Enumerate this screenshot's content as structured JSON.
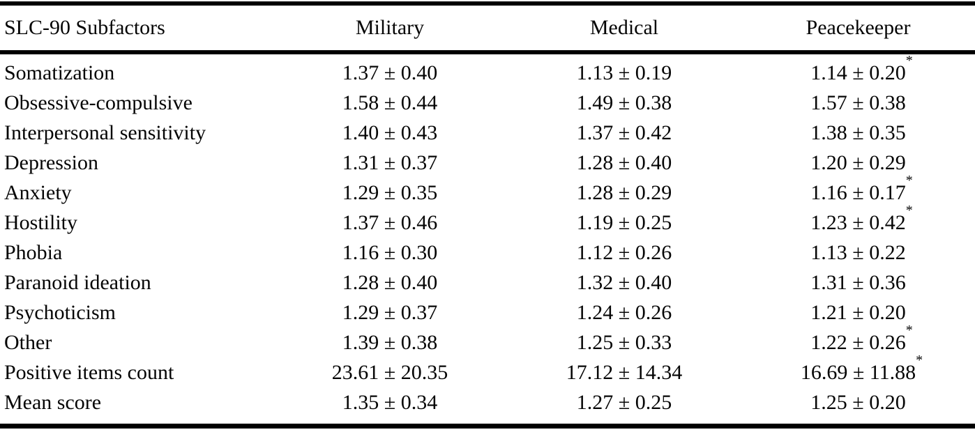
{
  "page": {
    "background_color": "#ffffff",
    "text_color": "#050505",
    "rule_color": "#000000"
  },
  "table": {
    "columns": [
      "SLC-90 Subfactors",
      "Military",
      "Medical",
      "Peacekeeper"
    ],
    "rows": [
      {
        "label": "Somatization",
        "military": "1.37 ± 0.40",
        "medical": "1.13 ± 0.19",
        "peacekeeper": "1.14 ± 0.20",
        "peacekeeper_sig": "*"
      },
      {
        "label": "Obsessive-compulsive",
        "military": "1.58 ± 0.44",
        "medical": "1.49 ± 0.38",
        "peacekeeper": "1.57 ± 0.38",
        "peacekeeper_sig": ""
      },
      {
        "label": "Interpersonal sensitivity",
        "military": "1.40 ± 0.43",
        "medical": "1.37 ± 0.42",
        "peacekeeper": "1.38 ± 0.35",
        "peacekeeper_sig": ""
      },
      {
        "label": "Depression",
        "military": "1.31 ± 0.37",
        "medical": "1.28 ± 0.40",
        "peacekeeper": "1.20 ± 0.29",
        "peacekeeper_sig": ""
      },
      {
        "label": "Anxiety",
        "military": "1.29 ± 0.35",
        "medical": "1.28 ± 0.29",
        "peacekeeper": "1.16 ± 0.17",
        "peacekeeper_sig": "*"
      },
      {
        "label": "Hostility",
        "military": "1.37 ± 0.46",
        "medical": "1.19 ± 0.25",
        "peacekeeper": "1.23 ± 0.42",
        "peacekeeper_sig": "*"
      },
      {
        "label": "Phobia",
        "military": "1.16 ± 0.30",
        "medical": "1.12 ± 0.26",
        "peacekeeper": "1.13 ± 0.22",
        "peacekeeper_sig": ""
      },
      {
        "label": "Paranoid ideation",
        "military": "1.28 ± 0.40",
        "medical": "1.32 ± 0.40",
        "peacekeeper": "1.31 ± 0.36",
        "peacekeeper_sig": ""
      },
      {
        "label": "Psychoticism",
        "military": "1.29 ± 0.37",
        "medical": "1.24 ± 0.26",
        "peacekeeper": "1.21 ± 0.20",
        "peacekeeper_sig": ""
      },
      {
        "label": "Other",
        "military": "1.39 ± 0.38",
        "medical": "1.25 ± 0.33",
        "peacekeeper": "1.22 ± 0.26",
        "peacekeeper_sig": "*"
      },
      {
        "label": "Positive items count",
        "military": "23.61 ± 20.35",
        "medical": "17.12 ± 14.34",
        "peacekeeper": "16.69 ± 11.88",
        "peacekeeper_sig": "*"
      },
      {
        "label": "Mean score",
        "military": "1.35 ± 0.34",
        "medical": "1.27 ± 0.25",
        "peacekeeper": "1.25 ± 0.20",
        "peacekeeper_sig": ""
      }
    ]
  }
}
